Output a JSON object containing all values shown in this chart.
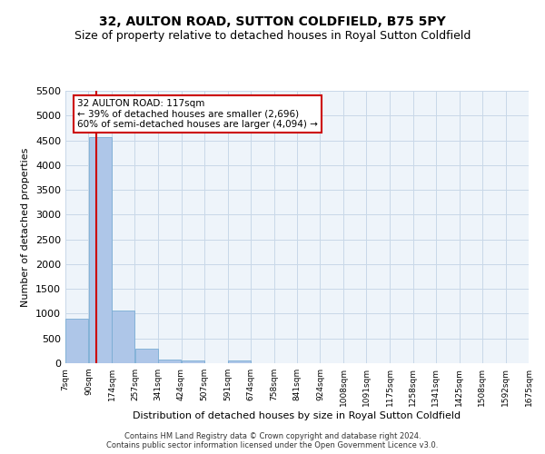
{
  "title": "32, AULTON ROAD, SUTTON COLDFIELD, B75 5PY",
  "subtitle": "Size of property relative to detached houses in Royal Sutton Coldfield",
  "xlabel": "Distribution of detached houses by size in Royal Sutton Coldfield",
  "ylabel": "Number of detached properties",
  "footer_line1": "Contains HM Land Registry data © Crown copyright and database right 2024.",
  "footer_line2": "Contains public sector information licensed under the Open Government Licence v3.0.",
  "annotation_line1": "32 AULTON ROAD: 117sqm",
  "annotation_line2": "← 39% of detached houses are smaller (2,696)",
  "annotation_line3": "60% of semi-detached houses are larger (4,094) →",
  "property_sqm": 117,
  "bar_edges": [
    7,
    90,
    174,
    257,
    341,
    424,
    507,
    591,
    674,
    758,
    841,
    924,
    1008,
    1091,
    1175,
    1258,
    1341,
    1425,
    1508,
    1592,
    1675
  ],
  "bar_heights": [
    890,
    4560,
    1060,
    295,
    80,
    60,
    0,
    55,
    0,
    0,
    0,
    0,
    0,
    0,
    0,
    0,
    0,
    0,
    0,
    0
  ],
  "bar_color": "#aec6e8",
  "bar_edgecolor": "#7aadd4",
  "vline_color": "#cc0000",
  "vline_x": 117,
  "ylim": [
    0,
    5500
  ],
  "yticks": [
    0,
    500,
    1000,
    1500,
    2000,
    2500,
    3000,
    3500,
    4000,
    4500,
    5000,
    5500
  ],
  "grid_color": "#c8d8e8",
  "bg_color": "#eef4fa",
  "annotation_box_color": "#cc0000",
  "title_fontsize": 10,
  "subtitle_fontsize": 9,
  "ylabel_fontsize": 8,
  "xlabel_fontsize": 8,
  "ytick_fontsize": 8,
  "xtick_fontsize": 6.5,
  "footer_fontsize": 6,
  "annotation_fontsize": 7.5
}
